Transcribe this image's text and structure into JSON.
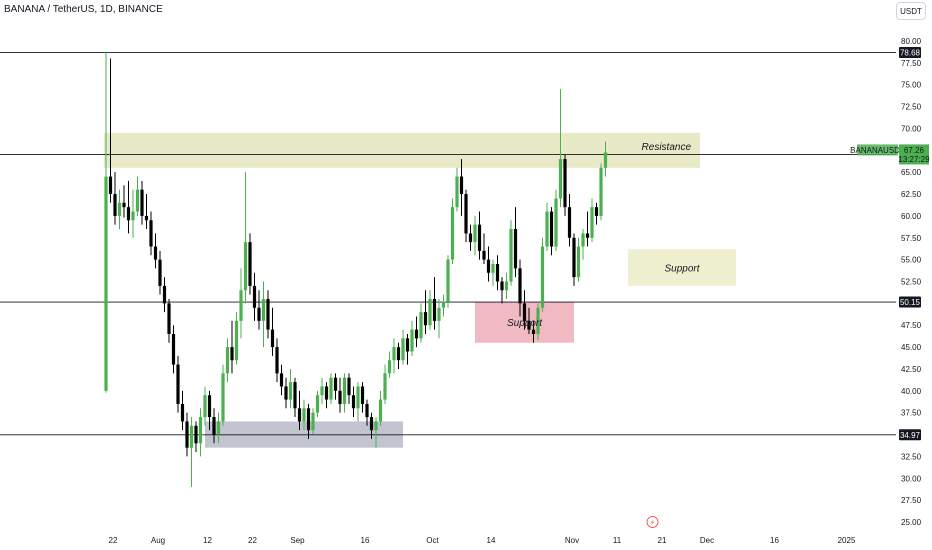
{
  "header": {
    "title": "BANANA / TetherUS, 1D, BINANCE",
    "currency_label": "USDT"
  },
  "colors": {
    "up": "#4caf50",
    "down": "#000000",
    "resistance_zone": "#e4e6bd",
    "support_zone_upper": "#ecedc7",
    "support_zone_lower": "#eeaeb9",
    "base_zone": "#b7bbc7",
    "last_price": "#4caf50"
  },
  "chart_data": {
    "type": "candlestick",
    "symbol_tag": "BANANAUSDT",
    "last_price": "67.26",
    "countdown": "13:27:29",
    "ylim": [
      25,
      80
    ],
    "y_ticks": [
      "80.00",
      "77.50",
      "75.00",
      "72.50",
      "70.00",
      "67.50",
      "65.00",
      "62.50",
      "60.00",
      "57.50",
      "55.00",
      "52.50",
      "50.00",
      "47.50",
      "45.00",
      "42.50",
      "40.00",
      "37.50",
      "35.00",
      "32.50",
      "30.00",
      "27.50",
      "25.00"
    ],
    "x_ticks": [
      {
        "label": "22",
        "day": 0
      },
      {
        "label": "Aug",
        "day": 10
      },
      {
        "label": "12",
        "day": 21
      },
      {
        "label": "22",
        "day": 31
      },
      {
        "label": "Sep",
        "day": 41
      },
      {
        "label": "16",
        "day": 56
      },
      {
        "label": "Oct",
        "day": 71
      },
      {
        "label": "14",
        "day": 84
      },
      {
        "label": "Nov",
        "day": 102
      },
      {
        "label": "11",
        "day": 112
      },
      {
        "label": "21",
        "day": 122
      },
      {
        "label": "Dec",
        "day": 132
      },
      {
        "label": "16",
        "day": 147
      },
      {
        "label": "2025",
        "day": 163
      }
    ],
    "horizontal_lines": [
      {
        "price": 78.68,
        "label": "78.68"
      },
      {
        "price": 67.03,
        "label": "67.03"
      },
      {
        "price": 50.15,
        "label": "50.15"
      },
      {
        "price": 34.97,
        "label": "34.97"
      }
    ],
    "zones": [
      {
        "label": "Resistance",
        "day_start": -0.5,
        "day_end": 132,
        "top": 69.5,
        "bottom": 65.5,
        "color": "#e4e6bd"
      },
      {
        "label": "Support",
        "day_start": 116,
        "day_end": 140,
        "top": 56.2,
        "bottom": 52.0,
        "color": "#ecedc7"
      },
      {
        "label": "Support",
        "day_start": 82,
        "day_end": 104,
        "top": 50.2,
        "bottom": 45.5,
        "color": "#eeaeb9"
      },
      {
        "label": "",
        "day_start": 22,
        "day_end": 66,
        "top": 36.5,
        "bottom": 33.5,
        "color": "#b7bbc7"
      }
    ],
    "candles": [
      {
        "o": 40.0,
        "h": 78.7,
        "l": 39.8,
        "c": 64.5
      },
      {
        "o": 64.5,
        "h": 78.0,
        "l": 61.5,
        "c": 62.5
      },
      {
        "o": 62.5,
        "h": 65.0,
        "l": 59.0,
        "c": 60.0
      },
      {
        "o": 60.0,
        "h": 63.0,
        "l": 58.5,
        "c": 61.5
      },
      {
        "o": 61.5,
        "h": 63.5,
        "l": 59.8,
        "c": 61.0
      },
      {
        "o": 61.0,
        "h": 64.0,
        "l": 58.0,
        "c": 59.5
      },
      {
        "o": 59.5,
        "h": 63.0,
        "l": 57.5,
        "c": 60.5
      },
      {
        "o": 60.5,
        "h": 64.5,
        "l": 60.0,
        "c": 63.0
      },
      {
        "o": 63.0,
        "h": 64.0,
        "l": 59.0,
        "c": 60.0
      },
      {
        "o": 60.0,
        "h": 62.5,
        "l": 58.5,
        "c": 59.5
      },
      {
        "o": 59.5,
        "h": 60.5,
        "l": 55.5,
        "c": 56.5
      },
      {
        "o": 56.5,
        "h": 58.0,
        "l": 54.0,
        "c": 55.0
      },
      {
        "o": 55.0,
        "h": 56.0,
        "l": 51.0,
        "c": 52.0
      },
      {
        "o": 52.0,
        "h": 53.0,
        "l": 49.0,
        "c": 50.0
      },
      {
        "o": 50.0,
        "h": 50.5,
        "l": 45.5,
        "c": 46.5
      },
      {
        "o": 46.5,
        "h": 47.5,
        "l": 42.0,
        "c": 43.0
      },
      {
        "o": 43.0,
        "h": 44.0,
        "l": 37.5,
        "c": 38.5
      },
      {
        "o": 38.5,
        "h": 40.0,
        "l": 35.5,
        "c": 36.5
      },
      {
        "o": 36.5,
        "h": 37.5,
        "l": 32.5,
        "c": 33.5
      },
      {
        "o": 33.5,
        "h": 37.0,
        "l": 29.0,
        "c": 36.0
      },
      {
        "o": 36.0,
        "h": 36.5,
        "l": 33.0,
        "c": 34.0
      },
      {
        "o": 34.0,
        "h": 38.0,
        "l": 32.5,
        "c": 37.0
      },
      {
        "o": 37.0,
        "h": 40.5,
        "l": 36.0,
        "c": 39.5
      },
      {
        "o": 39.5,
        "h": 40.0,
        "l": 35.5,
        "c": 37.0
      },
      {
        "o": 37.0,
        "h": 38.0,
        "l": 34.0,
        "c": 35.0
      },
      {
        "o": 35.0,
        "h": 37.5,
        "l": 34.0,
        "c": 36.5
      },
      {
        "o": 36.5,
        "h": 43.0,
        "l": 36.0,
        "c": 42.0
      },
      {
        "o": 42.0,
        "h": 46.0,
        "l": 41.0,
        "c": 45.0
      },
      {
        "o": 45.0,
        "h": 48.0,
        "l": 42.0,
        "c": 43.5
      },
      {
        "o": 43.5,
        "h": 49.0,
        "l": 43.0,
        "c": 48.0
      },
      {
        "o": 48.0,
        "h": 54.0,
        "l": 46.0,
        "c": 51.5
      },
      {
        "o": 51.5,
        "h": 65.0,
        "l": 50.0,
        "c": 57.0
      },
      {
        "o": 57.0,
        "h": 58.0,
        "l": 51.0,
        "c": 52.0
      },
      {
        "o": 52.0,
        "h": 53.5,
        "l": 48.0,
        "c": 49.5
      },
      {
        "o": 49.5,
        "h": 51.5,
        "l": 47.0,
        "c": 48.0
      },
      {
        "o": 48.0,
        "h": 52.5,
        "l": 45.0,
        "c": 50.5
      },
      {
        "o": 50.5,
        "h": 51.5,
        "l": 46.0,
        "c": 47.0
      },
      {
        "o": 47.0,
        "h": 49.5,
        "l": 44.0,
        "c": 45.0
      },
      {
        "o": 45.0,
        "h": 46.0,
        "l": 41.0,
        "c": 42.0
      },
      {
        "o": 42.0,
        "h": 43.0,
        "l": 39.5,
        "c": 40.5
      },
      {
        "o": 40.5,
        "h": 41.5,
        "l": 38.0,
        "c": 39.0
      },
      {
        "o": 39.0,
        "h": 42.5,
        "l": 38.0,
        "c": 41.0
      },
      {
        "o": 41.0,
        "h": 41.5,
        "l": 37.0,
        "c": 38.0
      },
      {
        "o": 38.0,
        "h": 40.0,
        "l": 35.5,
        "c": 36.5
      },
      {
        "o": 36.5,
        "h": 39.0,
        "l": 35.5,
        "c": 38.0
      },
      {
        "o": 38.0,
        "h": 38.5,
        "l": 34.5,
        "c": 35.5
      },
      {
        "o": 35.5,
        "h": 38.0,
        "l": 35.0,
        "c": 37.5
      },
      {
        "o": 37.5,
        "h": 40.0,
        "l": 37.0,
        "c": 39.5
      },
      {
        "o": 39.5,
        "h": 41.5,
        "l": 38.5,
        "c": 40.5
      },
      {
        "o": 40.5,
        "h": 41.0,
        "l": 38.0,
        "c": 39.0
      },
      {
        "o": 39.0,
        "h": 42.0,
        "l": 38.5,
        "c": 41.5
      },
      {
        "o": 41.5,
        "h": 42.0,
        "l": 39.0,
        "c": 40.0
      },
      {
        "o": 40.0,
        "h": 41.5,
        "l": 37.5,
        "c": 38.5
      },
      {
        "o": 38.5,
        "h": 42.0,
        "l": 37.5,
        "c": 41.5
      },
      {
        "o": 41.5,
        "h": 42.0,
        "l": 38.5,
        "c": 39.5
      },
      {
        "o": 39.5,
        "h": 40.5,
        "l": 37.0,
        "c": 38.0
      },
      {
        "o": 38.0,
        "h": 41.0,
        "l": 36.5,
        "c": 40.5
      },
      {
        "o": 40.5,
        "h": 41.0,
        "l": 37.5,
        "c": 38.5
      },
      {
        "o": 38.5,
        "h": 39.0,
        "l": 36.0,
        "c": 37.0
      },
      {
        "o": 37.0,
        "h": 37.5,
        "l": 34.5,
        "c": 35.5
      },
      {
        "o": 35.5,
        "h": 37.0,
        "l": 33.5,
        "c": 36.5
      },
      {
        "o": 36.5,
        "h": 40.0,
        "l": 36.0,
        "c": 39.0
      },
      {
        "o": 39.0,
        "h": 43.0,
        "l": 38.5,
        "c": 42.0
      },
      {
        "o": 42.0,
        "h": 44.5,
        "l": 41.5,
        "c": 43.5
      },
      {
        "o": 43.5,
        "h": 46.0,
        "l": 42.0,
        "c": 45.0
      },
      {
        "o": 45.0,
        "h": 45.5,
        "l": 42.5,
        "c": 43.5
      },
      {
        "o": 43.5,
        "h": 47.0,
        "l": 43.0,
        "c": 46.0
      },
      {
        "o": 46.0,
        "h": 46.5,
        "l": 43.0,
        "c": 44.5
      },
      {
        "o": 44.5,
        "h": 48.0,
        "l": 44.0,
        "c": 47.0
      },
      {
        "o": 47.0,
        "h": 48.5,
        "l": 45.0,
        "c": 46.0
      },
      {
        "o": 46.0,
        "h": 50.0,
        "l": 45.5,
        "c": 49.0
      },
      {
        "o": 49.0,
        "h": 51.5,
        "l": 46.5,
        "c": 47.5
      },
      {
        "o": 47.5,
        "h": 51.5,
        "l": 47.0,
        "c": 50.5
      },
      {
        "o": 50.5,
        "h": 53.0,
        "l": 47.0,
        "c": 48.0
      },
      {
        "o": 48.0,
        "h": 50.5,
        "l": 46.0,
        "c": 49.5
      },
      {
        "o": 49.5,
        "h": 51.0,
        "l": 48.5,
        "c": 50.2
      },
      {
        "o": 50.2,
        "h": 55.5,
        "l": 49.5,
        "c": 55.0
      },
      {
        "o": 55.0,
        "h": 62.0,
        "l": 54.5,
        "c": 61.0
      },
      {
        "o": 61.0,
        "h": 65.5,
        "l": 60.5,
        "c": 64.5
      },
      {
        "o": 64.5,
        "h": 66.5,
        "l": 60.0,
        "c": 62.5
      },
      {
        "o": 62.5,
        "h": 63.0,
        "l": 57.0,
        "c": 58.0
      },
      {
        "o": 58.0,
        "h": 59.0,
        "l": 56.0,
        "c": 57.0
      },
      {
        "o": 57.0,
        "h": 60.0,
        "l": 55.5,
        "c": 59.0
      },
      {
        "o": 59.0,
        "h": 60.5,
        "l": 55.0,
        "c": 56.0
      },
      {
        "o": 56.0,
        "h": 58.0,
        "l": 54.5,
        "c": 55.0
      },
      {
        "o": 55.0,
        "h": 56.5,
        "l": 52.5,
        "c": 53.5
      },
      {
        "o": 53.5,
        "h": 55.0,
        "l": 52.0,
        "c": 54.5
      },
      {
        "o": 54.5,
        "h": 55.5,
        "l": 51.5,
        "c": 52.5
      },
      {
        "o": 52.5,
        "h": 53.0,
        "l": 50.0,
        "c": 51.5
      },
      {
        "o": 51.5,
        "h": 53.5,
        "l": 50.5,
        "c": 52.5
      },
      {
        "o": 52.5,
        "h": 59.5,
        "l": 52.0,
        "c": 58.5
      },
      {
        "o": 58.5,
        "h": 61.0,
        "l": 53.0,
        "c": 54.0
      },
      {
        "o": 54.0,
        "h": 55.0,
        "l": 48.5,
        "c": 50.0
      },
      {
        "o": 50.0,
        "h": 51.5,
        "l": 47.0,
        "c": 48.0
      },
      {
        "o": 48.0,
        "h": 49.5,
        "l": 46.5,
        "c": 47.0
      },
      {
        "o": 47.0,
        "h": 48.0,
        "l": 45.5,
        "c": 46.5
      },
      {
        "o": 46.5,
        "h": 50.0,
        "l": 45.8,
        "c": 49.5
      },
      {
        "o": 49.5,
        "h": 57.5,
        "l": 49.0,
        "c": 56.5
      },
      {
        "o": 56.5,
        "h": 61.5,
        "l": 56.0,
        "c": 60.5
      },
      {
        "o": 60.5,
        "h": 61.0,
        "l": 55.5,
        "c": 56.5
      },
      {
        "o": 56.5,
        "h": 63.0,
        "l": 56.0,
        "c": 62.0
      },
      {
        "o": 62.0,
        "h": 74.5,
        "l": 61.0,
        "c": 66.5
      },
      {
        "o": 66.5,
        "h": 67.0,
        "l": 60.0,
        "c": 61.0
      },
      {
        "o": 61.0,
        "h": 62.5,
        "l": 56.5,
        "c": 57.5
      },
      {
        "o": 57.5,
        "h": 58.0,
        "l": 52.0,
        "c": 53.0
      },
      {
        "o": 53.0,
        "h": 57.5,
        "l": 52.5,
        "c": 56.5
      },
      {
        "o": 56.5,
        "h": 58.5,
        "l": 55.0,
        "c": 58.0
      },
      {
        "o": 58.0,
        "h": 60.5,
        "l": 56.5,
        "c": 57.5
      },
      {
        "o": 57.5,
        "h": 62.0,
        "l": 57.0,
        "c": 61.0
      },
      {
        "o": 61.0,
        "h": 61.5,
        "l": 59.0,
        "c": 60.0
      },
      {
        "o": 60.0,
        "h": 66.0,
        "l": 59.5,
        "c": 65.5
      },
      {
        "o": 65.5,
        "h": 68.5,
        "l": 64.5,
        "c": 67.26
      }
    ]
  },
  "footer": {
    "flash_icon_label": "⚡"
  }
}
